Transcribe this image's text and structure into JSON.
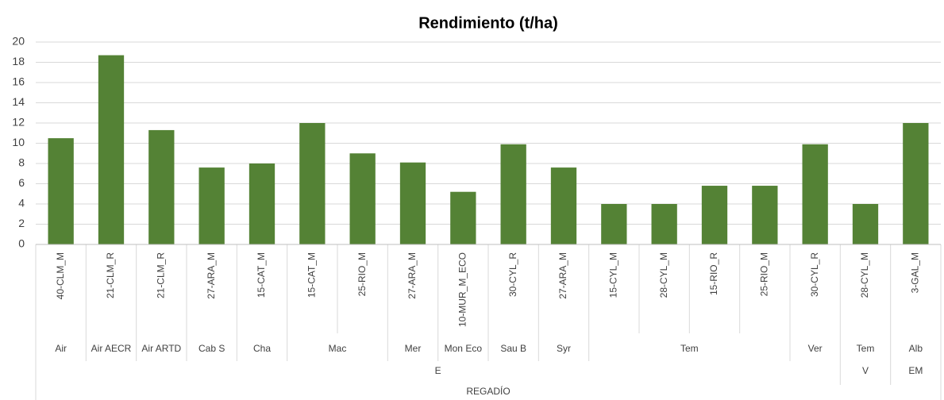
{
  "chart_data": {
    "type": "bar",
    "title": "Rendimiento (t/ha)",
    "categories": [
      "40-CLM_M",
      "21-CLM_R",
      "21-CLM_R",
      "27-ARA_M",
      "15-CAT_M",
      "15-CAT_M",
      "25-RIO_M",
      "27-ARA_M",
      "10-MUR_M_ECO",
      "30-CYL_R",
      "27-ARA_M",
      "15-CYL_M",
      "28-CYL_M",
      "15-RIO_R",
      "25-RIO_M",
      "30-CYL_R",
      "28-CYL_M",
      "3-GAL_M"
    ],
    "category_groups": [
      [
        {
          "label": "Air",
          "span": 1
        },
        {
          "label": "Air AECR",
          "span": 1
        },
        {
          "label": "Air ARTD",
          "span": 1
        },
        {
          "label": "Cab S",
          "span": 1
        },
        {
          "label": "Cha",
          "span": 1
        },
        {
          "label": "Mac",
          "span": 2
        },
        {
          "label": "Mer",
          "span": 1
        },
        {
          "label": "Mon Eco",
          "span": 1
        },
        {
          "label": "Sau B",
          "span": 1
        },
        {
          "label": "Syr",
          "span": 1
        },
        {
          "label": "Tem",
          "span": 4
        },
        {
          "label": "Ver",
          "span": 1
        },
        {
          "label": "Tem",
          "span": 1
        },
        {
          "label": "Alb",
          "span": 1
        }
      ],
      [
        {
          "label": "E",
          "span": 16
        },
        {
          "label": "V",
          "span": 1
        },
        {
          "label": "EM",
          "span": 1
        }
      ],
      [
        {
          "label": "REGADÍO",
          "span": 18
        }
      ]
    ],
    "values": [
      10.5,
      18.7,
      11.3,
      7.6,
      8.0,
      12.0,
      9.0,
      8.1,
      5.2,
      9.9,
      7.6,
      4.0,
      4.0,
      5.8,
      5.8,
      9.9,
      4.0,
      12.0
    ],
    "color": "#548235",
    "ylim": [
      0,
      20
    ],
    "yticks": [
      0,
      2,
      4,
      6,
      8,
      10,
      12,
      14,
      16,
      18,
      20
    ],
    "grid": true
  }
}
